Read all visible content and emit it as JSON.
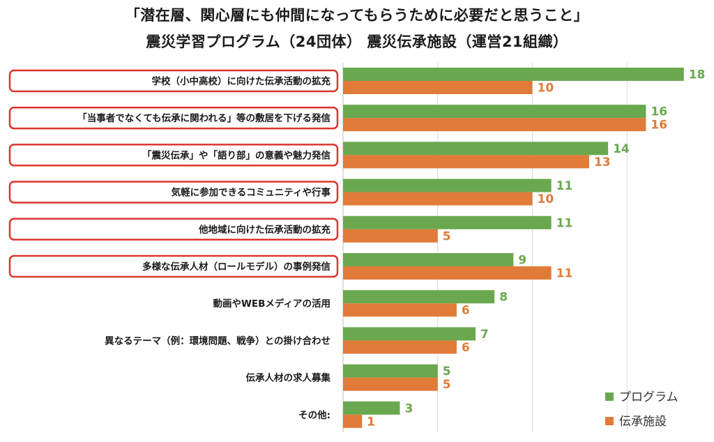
{
  "title_line1": "「潜在層、関心層にも仲間になってもらうために必要だと思うこと」",
  "title_line2": "震災学習プログラム（24団体） 震災伝承施設（運営21組織）",
  "chart_data": {
    "type": "bar",
    "orientation": "horizontal",
    "categories": [
      "学校（小中高校）に向けた伝承活動の拡充",
      "「当事者でなくても伝承に関われる」等の敷居を下げる発信",
      "「震災伝承」や「語り部」の意義や魅力発信",
      "気軽に参加できるコミュニティや行事",
      "他地域に向けた伝承活動の拡充",
      "多様な伝承人材（ロールモデル）の事例発信",
      "動画やWEBメディアの活用",
      "異なるテーマ（例：環境問題、戦争）との掛け合わせ",
      "伝承人材の求人募集",
      "その他:"
    ],
    "highlighted": [
      true,
      true,
      true,
      true,
      true,
      true,
      false,
      false,
      false,
      false
    ],
    "series": [
      {
        "name": "プログラム",
        "color": "#6aa84f",
        "values": [
          18,
          16,
          14,
          11,
          11,
          9,
          8,
          7,
          5,
          3
        ]
      },
      {
        "name": "伝承施設",
        "color": "#e07b39",
        "values": [
          10,
          16,
          13,
          10,
          5,
          11,
          6,
          6,
          5,
          1
        ]
      }
    ],
    "xlim": [
      0,
      20
    ],
    "grid": true,
    "legend_position": "bottom-right",
    "highlight_color": "#d9352b"
  }
}
